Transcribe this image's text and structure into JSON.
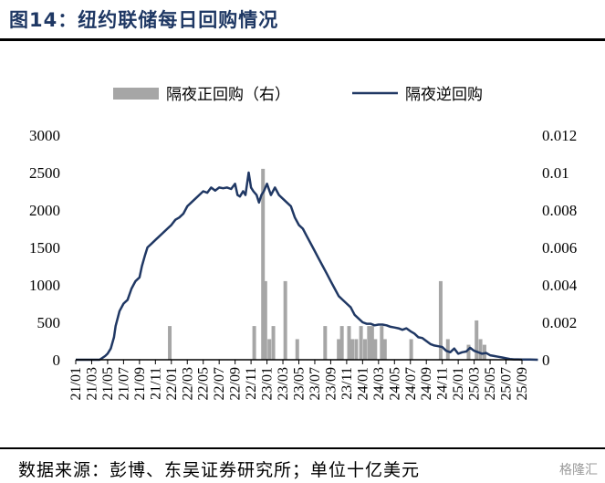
{
  "header": {
    "title": "图14：纽约联储每日回购情况"
  },
  "footer": {
    "source": "数据来源：彭博、东吴证券研究所；单位十亿美元",
    "watermark": "格隆汇"
  },
  "chart_data": {
    "type": "bar+line",
    "legend": {
      "bar": "隔夜正回购（右）",
      "line": "隔夜逆回购",
      "placement": "top"
    },
    "x_ticks": [
      "21/01",
      "21/03",
      "21/05",
      "21/07",
      "21/09",
      "21/11",
      "22/01",
      "22/03",
      "22/05",
      "22/07",
      "22/09",
      "22/11",
      "23/01",
      "23/03",
      "23/05",
      "23/07",
      "23/09",
      "23/11",
      "24/01",
      "24/03",
      "24/05",
      "24/07",
      "24/09",
      "24/11",
      "25/01",
      "25/03",
      "25/05",
      "25/07",
      "25/09"
    ],
    "y_left": {
      "ticks": [
        0,
        500,
        1000,
        1500,
        2000,
        2500,
        3000
      ],
      "lim": [
        0,
        3000
      ]
    },
    "y_right": {
      "ticks": [
        "0",
        "0.002",
        "0.004",
        "0.006",
        "0.008",
        "0.01",
        "0.012"
      ],
      "lim": [
        0,
        0.012
      ]
    },
    "line_series": {
      "name": "隔夜逆回购",
      "x": [
        0,
        1,
        2,
        3,
        3.7,
        4,
        4.4,
        4.8,
        5,
        5.5,
        6,
        6.5,
        7,
        7.5,
        8,
        8.3,
        8.7,
        9,
        9.5,
        10,
        10.5,
        11,
        11.5,
        12,
        12.5,
        13,
        13.5,
        14,
        14.5,
        15,
        15.5,
        16,
        16.5,
        17,
        17.5,
        18,
        18.5,
        19,
        19.5,
        20,
        20.3,
        20.6,
        21,
        21.3,
        21.7,
        22,
        22.3,
        22.7,
        23,
        23.3,
        23.6,
        24,
        24.5,
        25,
        25.5,
        26,
        26.5,
        27,
        27.5,
        28,
        28.5,
        29,
        29.5,
        30,
        30.5,
        31,
        31.5,
        32,
        32.5,
        33,
        33.5,
        34,
        34.5,
        35,
        35.5,
        36,
        36.5,
        37,
        37.5,
        38,
        38.5,
        39,
        39.5,
        40,
        40.5,
        41,
        41.5,
        42,
        42.5,
        43,
        43.5,
        44,
        44.5,
        45,
        45.5,
        46,
        46.5,
        47,
        47.5,
        48,
        48.5,
        49,
        49.5,
        50,
        50.5,
        51,
        51.5,
        52,
        52.5,
        53,
        53.5,
        54,
        54.5,
        55,
        55.5,
        56,
        56.5,
        57,
        57.5,
        58
      ],
      "y": [
        0,
        0,
        0,
        0,
        50,
        80,
        150,
        300,
        450,
        650,
        750,
        800,
        950,
        1050,
        1100,
        1250,
        1400,
        1500,
        1550,
        1600,
        1650,
        1700,
        1750,
        1800,
        1870,
        1900,
        1950,
        2050,
        2100,
        2150,
        2200,
        2250,
        2230,
        2300,
        2260,
        2300,
        2290,
        2300,
        2280,
        2350,
        2200,
        2180,
        2250,
        2200,
        2500,
        2300,
        2250,
        2200,
        2100,
        2200,
        2250,
        2350,
        2200,
        2300,
        2200,
        2150,
        2100,
        2050,
        1900,
        1800,
        1750,
        1650,
        1550,
        1450,
        1350,
        1250,
        1150,
        1050,
        950,
        850,
        800,
        750,
        700,
        600,
        550,
        500,
        480,
        480,
        460,
        470,
        470,
        460,
        440,
        430,
        420,
        400,
        420,
        380,
        350,
        300,
        290,
        250,
        210,
        190,
        180,
        170,
        120,
        100,
        150,
        80,
        100,
        110,
        160,
        120,
        100,
        80,
        90,
        60,
        50,
        40,
        30,
        20,
        10,
        5,
        5,
        4,
        3,
        2,
        1,
        0
      ],
      "unit": "十亿美元"
    },
    "bar_series": {
      "name": "隔夜正回购（右）",
      "bars": [
        {
          "x": 11.8,
          "v": 0.0018
        },
        {
          "x": 22.4,
          "v": 0.0018
        },
        {
          "x": 23.5,
          "v": 0.0102
        },
        {
          "x": 23.8,
          "v": 0.0042
        },
        {
          "x": 24.3,
          "v": 0.0011
        },
        {
          "x": 24.8,
          "v": 0.0018
        },
        {
          "x": 26.3,
          "v": 0.0042
        },
        {
          "x": 27.8,
          "v": 0.0011
        },
        {
          "x": 31.3,
          "v": 0.0018
        },
        {
          "x": 33.0,
          "v": 0.0011
        },
        {
          "x": 33.4,
          "v": 0.0018
        },
        {
          "x": 34.3,
          "v": 0.0018
        },
        {
          "x": 34.7,
          "v": 0.0011
        },
        {
          "x": 35.2,
          "v": 0.0011
        },
        {
          "x": 35.8,
          "v": 0.0018
        },
        {
          "x": 36.3,
          "v": 0.0011
        },
        {
          "x": 36.8,
          "v": 0.0018
        },
        {
          "x": 37.2,
          "v": 0.0018
        },
        {
          "x": 37.6,
          "v": 0.0011
        },
        {
          "x": 38.4,
          "v": 0.0018
        },
        {
          "x": 38.8,
          "v": 0.0011
        },
        {
          "x": 42.1,
          "v": 0.0011
        },
        {
          "x": 45.8,
          "v": 0.0042
        },
        {
          "x": 46.7,
          "v": 0.0011
        },
        {
          "x": 49.3,
          "v": 0.0008
        },
        {
          "x": 50.3,
          "v": 0.0021
        },
        {
          "x": 50.8,
          "v": 0.0011
        },
        {
          "x": 51.3,
          "v": 0.0008
        }
      ]
    }
  }
}
